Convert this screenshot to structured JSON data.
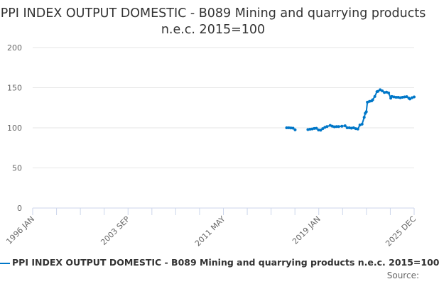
{
  "chart_data": {
    "type": "line",
    "title": "PPI INDEX OUTPUT DOMESTIC - B089 Mining and quarrying products n.e.c. 2015=100",
    "xlabel": "",
    "ylabel": "",
    "xlim": [
      "1996-01",
      "2025-12"
    ],
    "ylim": [
      0,
      200
    ],
    "yticks": [
      0,
      50,
      100,
      150,
      200
    ],
    "xtick_labels": [
      "1996 JAN",
      "2003 SEP",
      "2011 MAY",
      "2019 JAN",
      "2025 DEC"
    ],
    "grid": true,
    "legend_placement": "bottom",
    "series": [
      {
        "name": "PPI INDEX OUTPUT DOMESTIC - B089 Mining and quarrying products n.e.c. 2015=100",
        "color": "#0077c8",
        "points": [
          [
            "2015-12",
            100
          ],
          [
            "2016-02",
            100
          ],
          [
            "2016-04",
            99.8
          ],
          [
            "2016-06",
            99.6
          ],
          [
            "2016-08",
            97.5
          ],
          [
            "2017-08",
            97.8
          ],
          [
            "2017-10",
            98.2
          ],
          [
            "2017-12",
            98.6
          ],
          [
            "2018-02",
            99.2
          ],
          [
            "2018-04",
            99.5
          ],
          [
            "2018-06",
            97.2
          ],
          [
            "2018-08",
            97
          ],
          [
            "2018-10",
            99
          ],
          [
            "2018-12",
            100.5
          ],
          [
            "2019-02",
            101.5
          ],
          [
            "2019-05",
            103
          ],
          [
            "2019-07",
            102
          ],
          [
            "2019-09",
            101.2
          ],
          [
            "2019-11",
            101.6
          ],
          [
            "2020-01",
            101.5
          ],
          [
            "2020-04",
            102
          ],
          [
            "2020-07",
            102.5
          ],
          [
            "2020-09",
            100
          ],
          [
            "2020-11",
            100
          ],
          [
            "2021-01",
            99.6
          ],
          [
            "2021-03",
            100
          ],
          [
            "2021-05",
            99
          ],
          [
            "2021-07",
            98.5
          ],
          [
            "2021-09",
            103.5
          ],
          [
            "2021-11",
            104.5
          ],
          [
            "2022-01",
            113
          ],
          [
            "2022-02",
            118
          ],
          [
            "2022-03",
            120
          ],
          [
            "2022-04",
            132
          ],
          [
            "2022-06",
            133
          ],
          [
            "2022-08",
            133.5
          ],
          [
            "2022-09",
            135
          ],
          [
            "2022-11",
            139
          ],
          [
            "2023-01",
            145
          ],
          [
            "2023-02",
            145.5
          ],
          [
            "2023-04",
            147.5
          ],
          [
            "2023-06",
            146
          ],
          [
            "2023-08",
            144
          ],
          [
            "2023-10",
            144.5
          ],
          [
            "2023-12",
            143.5
          ],
          [
            "2024-02",
            137
          ],
          [
            "2024-03",
            139
          ],
          [
            "2024-05",
            138.5
          ],
          [
            "2024-07",
            138
          ],
          [
            "2024-09",
            138
          ],
          [
            "2024-11",
            137.5
          ],
          [
            "2025-01",
            138
          ],
          [
            "2025-03",
            138.5
          ],
          [
            "2025-05",
            138.8
          ],
          [
            "2025-07",
            137
          ],
          [
            "2025-08",
            136
          ],
          [
            "2025-10",
            137.5
          ],
          [
            "2025-12",
            138.5
          ]
        ],
        "gaps_after": [
          "2016-08"
        ]
      }
    ],
    "source_label": "Source:"
  }
}
